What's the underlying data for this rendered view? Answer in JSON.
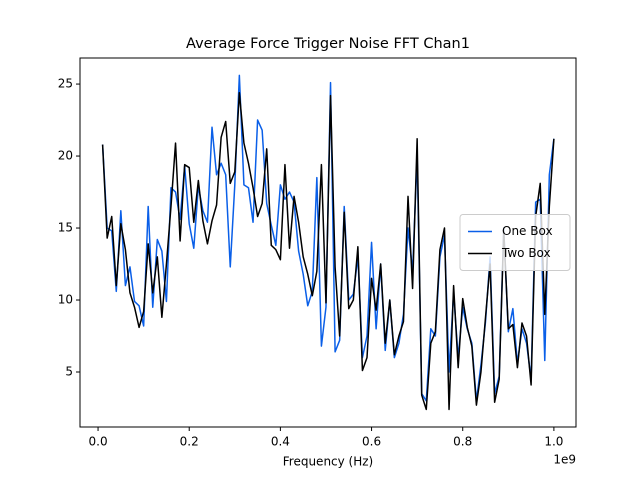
{
  "chart_data": {
    "type": "line",
    "title": "Average Force Trigger Noise FFT Chan1",
    "x_label": "Frequency (Hz)",
    "x_offset_label": "1e9",
    "x": [
      0.01,
      0.02,
      0.03,
      0.04,
      0.05,
      0.06,
      0.07,
      0.08,
      0.09,
      0.1,
      0.11,
      0.12,
      0.13,
      0.14,
      0.15,
      0.16,
      0.17,
      0.18,
      0.19,
      0.2,
      0.21,
      0.22,
      0.23,
      0.24,
      0.25,
      0.26,
      0.27,
      0.28,
      0.29,
      0.3,
      0.31,
      0.32,
      0.33,
      0.34,
      0.35,
      0.36,
      0.37,
      0.38,
      0.39,
      0.4,
      0.41,
      0.42,
      0.43,
      0.44,
      0.45,
      0.46,
      0.47,
      0.48,
      0.49,
      0.5,
      0.51,
      0.52,
      0.53,
      0.54,
      0.55,
      0.56,
      0.57,
      0.58,
      0.59,
      0.6,
      0.61,
      0.62,
      0.63,
      0.64,
      0.65,
      0.66,
      0.67,
      0.68,
      0.69,
      0.7,
      0.71,
      0.72,
      0.73,
      0.74,
      0.75,
      0.76,
      0.77,
      0.78,
      0.79,
      0.8,
      0.81,
      0.82,
      0.83,
      0.84,
      0.85,
      0.86,
      0.87,
      0.88,
      0.89,
      0.9,
      0.91,
      0.92,
      0.93,
      0.94,
      0.95,
      0.96,
      0.97,
      0.98,
      0.99,
      1.0
    ],
    "series": [
      {
        "name": "One Box",
        "color": "#0a5fe8",
        "values": [
          20.8,
          15.0,
          14.8,
          10.6,
          16.2,
          11.0,
          12.3,
          9.9,
          9.6,
          8.2,
          16.5,
          9.5,
          14.2,
          13.4,
          9.9,
          17.8,
          17.5,
          15.6,
          19.3,
          15.3,
          13.6,
          17.9,
          16.2,
          15.4,
          22.0,
          18.7,
          19.5,
          18.7,
          12.3,
          18.0,
          25.6,
          18.0,
          17.8,
          15.4,
          22.5,
          21.8,
          16.7,
          15.2,
          13.8,
          18.0,
          17.0,
          17.5,
          16.8,
          13.4,
          11.8,
          9.6,
          10.6,
          18.5,
          6.8,
          9.5,
          25.1,
          6.4,
          7.2,
          16.5,
          10.0,
          10.4,
          13.0,
          6.0,
          7.5,
          14.0,
          8.0,
          12.5,
          6.5,
          10.0,
          6.0,
          7.0,
          9.0,
          15.0,
          12.0,
          20.0,
          3.5,
          3.0,
          8.0,
          7.5,
          13.0,
          14.5,
          5.0,
          10.5,
          6.0,
          9.5,
          8.0,
          7.0,
          3.0,
          5.5,
          8.5,
          13.0,
          3.5,
          4.7,
          15.0,
          7.8,
          9.4,
          5.6,
          8.0,
          7.0,
          4.5,
          16.8,
          17.0,
          5.8,
          18.7,
          21.2
        ]
      },
      {
        "name": "Two Box",
        "color": "#000000",
        "values": [
          20.8,
          14.3,
          15.8,
          11.0,
          15.3,
          13.5,
          10.5,
          9.5,
          8.1,
          9.2,
          13.9,
          10.5,
          13.0,
          8.8,
          12.5,
          16.5,
          20.9,
          14.1,
          19.4,
          19.2,
          15.4,
          18.3,
          15.5,
          13.9,
          15.5,
          16.6,
          21.3,
          22.4,
          18.1,
          18.9,
          24.4,
          20.9,
          19.5,
          17.8,
          15.8,
          16.7,
          20.5,
          13.8,
          13.5,
          12.8,
          19.4,
          13.6,
          17.2,
          15.4,
          13.0,
          11.8,
          10.3,
          12.0,
          19.4,
          9.8,
          24.2,
          12.3,
          7.5,
          16.1,
          9.4,
          10.0,
          13.7,
          5.1,
          6.0,
          11.5,
          9.3,
          12.5,
          7.0,
          10.0,
          6.2,
          7.5,
          8.5,
          17.2,
          10.8,
          21.2,
          3.4,
          2.4,
          7.0,
          7.8,
          13.5,
          15.0,
          2.4,
          11.0,
          5.3,
          10.1,
          8.1,
          6.8,
          2.7,
          5.0,
          8.8,
          12.5,
          2.9,
          4.5,
          14.8,
          8.0,
          8.3,
          5.3,
          8.4,
          7.5,
          4.1,
          15.8,
          18.1,
          9.0,
          16.5,
          21.2
        ]
      }
    ],
    "xlim": [
      -0.0396,
      1.0485
    ],
    "ylim": [
      1.18,
      26.81
    ],
    "xticks": [
      {
        "value": 0,
        "label": "0.0"
      },
      0.2,
      0.4,
      0.6,
      0.8,
      {
        "value": 1,
        "label": "1.0"
      }
    ],
    "yticks": [
      5,
      10,
      15,
      20,
      25
    ],
    "legend": "center right",
    "grid": false
  }
}
